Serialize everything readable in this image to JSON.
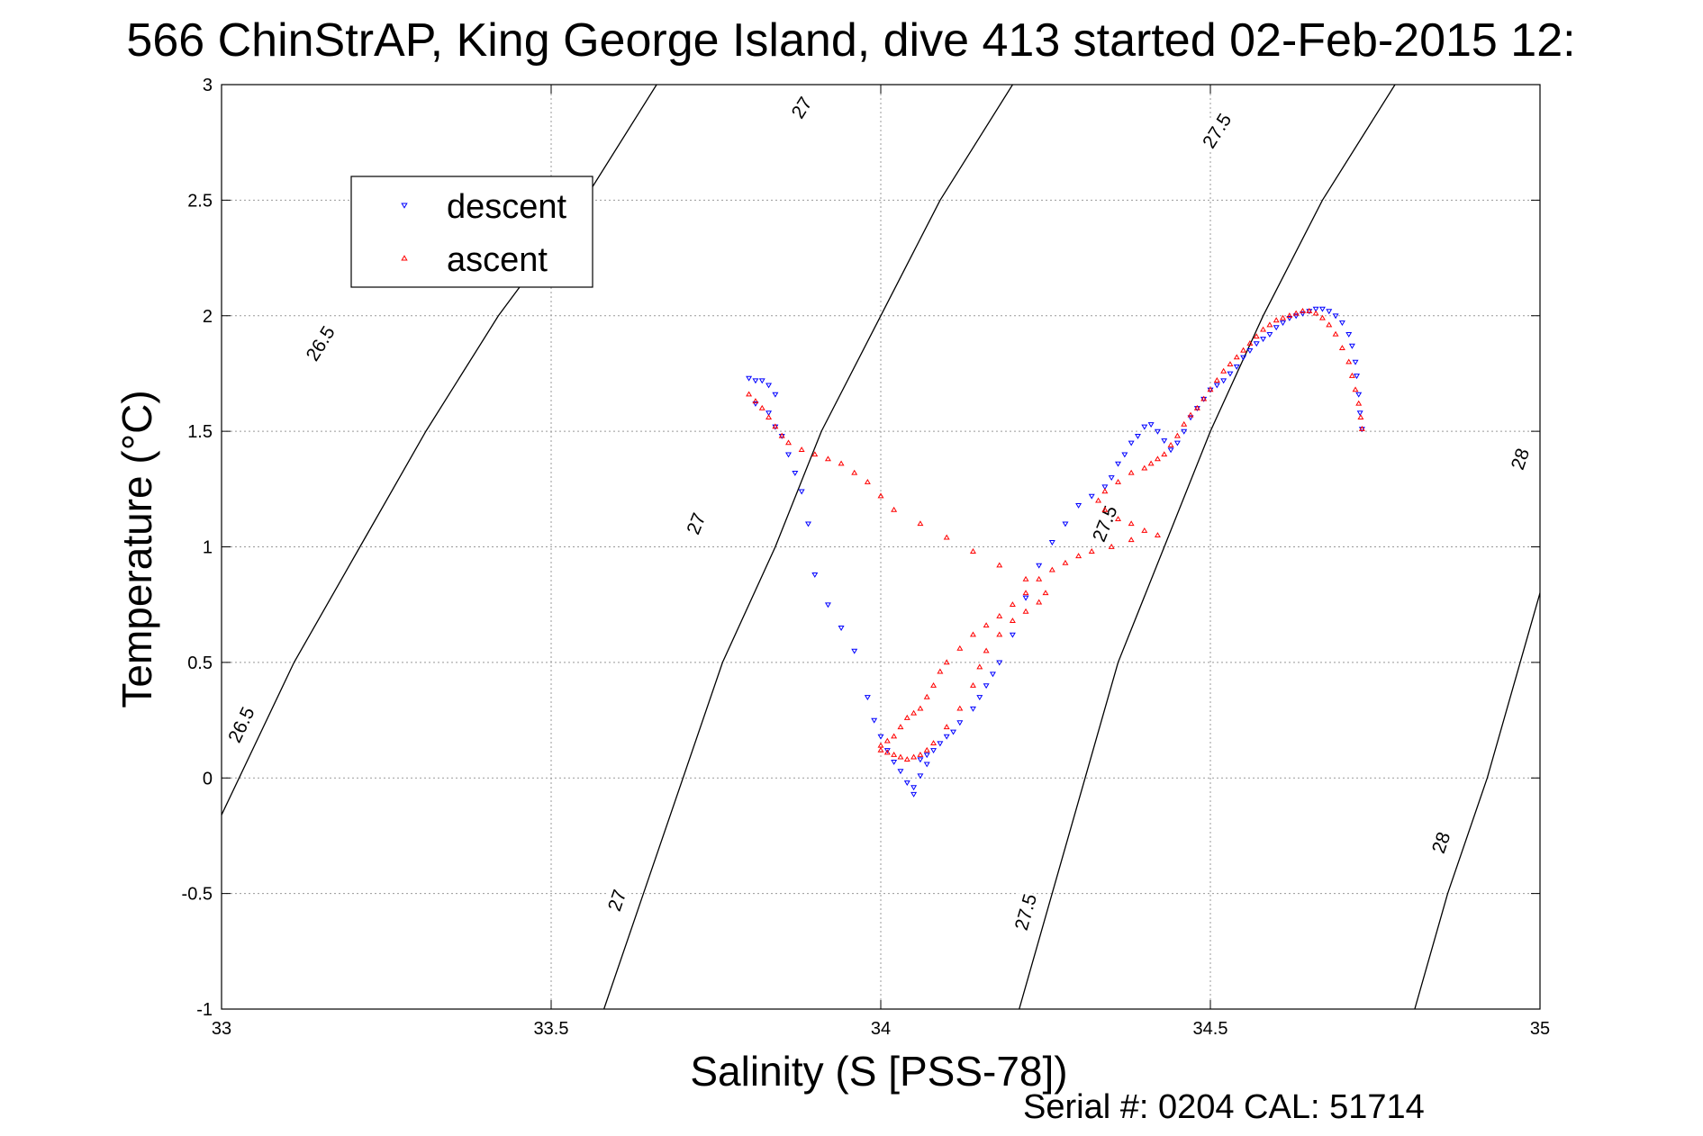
{
  "chart_data": {
    "type": "scatter",
    "title": "566 ChinStrAP, King George Island, dive 413 started 02-Feb-2015 12:",
    "xlabel": "Salinity (S [PSS-78])",
    "ylabel": "Temperature (°C)",
    "xlim": [
      33,
      35
    ],
    "ylim": [
      -1,
      3
    ],
    "xticks": [
      33,
      33.5,
      34,
      34.5,
      35
    ],
    "xtick_labels": [
      "33",
      "33.5",
      "34",
      "34.5",
      "35"
    ],
    "yticks": [
      -1,
      -0.5,
      0,
      0.5,
      1,
      1.5,
      2,
      2.5,
      3
    ],
    "ytick_labels": [
      "-1",
      "-0.5",
      "0",
      "0.5",
      "1",
      "1.5",
      "2",
      "2.5",
      "3"
    ],
    "grid": true,
    "legend_position": "upper-left",
    "footer": "Serial #: 0204  CAL: 51714",
    "contours": [
      {
        "level": "26.5",
        "points": [
          [
            33.0,
            -0.16
          ],
          [
            33.11,
            0.5
          ],
          [
            33.21,
            1.0
          ],
          [
            33.31,
            1.5
          ],
          [
            33.42,
            2.0
          ],
          [
            33.55,
            2.5
          ],
          [
            33.66,
            3.0
          ]
        ],
        "labels": [
          {
            "text": "26.5",
            "x": 33.03,
            "y": 0.23
          },
          {
            "text": "26.5",
            "x": 33.15,
            "y": 1.88
          }
        ]
      },
      {
        "level": "27",
        "points": [
          [
            33.58,
            -1.0
          ],
          [
            33.64,
            -0.5
          ],
          [
            33.7,
            0.0
          ],
          [
            33.76,
            0.5
          ],
          [
            33.84,
            1.0
          ],
          [
            33.91,
            1.5
          ],
          [
            34.0,
            2.0
          ],
          [
            34.09,
            2.5
          ],
          [
            34.2,
            3.0
          ]
        ],
        "labels": [
          {
            "text": "27",
            "x": 33.6,
            "y": -0.53
          },
          {
            "text": "27",
            "x": 33.72,
            "y": 1.1
          },
          {
            "text": "27",
            "x": 33.88,
            "y": 2.9
          }
        ]
      },
      {
        "level": "27.5",
        "points": [
          [
            34.21,
            -1.0
          ],
          [
            34.26,
            -0.5
          ],
          [
            34.31,
            0.0
          ],
          [
            34.36,
            0.5
          ],
          [
            34.43,
            1.0
          ],
          [
            34.5,
            1.5
          ],
          [
            34.58,
            2.0
          ],
          [
            34.67,
            2.5
          ],
          [
            34.78,
            3.0
          ]
        ],
        "labels": [
          {
            "text": "27.5",
            "x": 34.22,
            "y": -0.58
          },
          {
            "text": "27.5",
            "x": 34.34,
            "y": 1.1
          },
          {
            "text": "27.5",
            "x": 34.51,
            "y": 2.8
          }
        ]
      },
      {
        "level": "28",
        "points": [
          [
            34.81,
            -1.0
          ],
          [
            34.86,
            -0.5
          ],
          [
            34.92,
            0.0
          ],
          [
            34.97,
            0.5
          ],
          [
            35.02,
            1.0
          ],
          [
            35.08,
            1.5
          ],
          [
            35.15,
            2.0
          ]
        ],
        "labels": [
          {
            "text": "28",
            "x": 34.85,
            "y": -0.28
          },
          {
            "text": "28",
            "x": 34.97,
            "y": 1.38
          }
        ]
      }
    ],
    "series": [
      {
        "name": "descent",
        "color": "#0000ff",
        "marker": "triangle-down",
        "x": [
          33.8,
          33.81,
          33.82,
          33.83,
          33.84,
          33.81,
          33.83,
          33.84,
          33.85,
          33.86,
          33.87,
          33.88,
          33.89,
          33.9,
          33.92,
          33.94,
          33.96,
          33.98,
          33.99,
          34.0,
          34.01,
          34.02,
          34.03,
          34.04,
          34.05,
          34.05,
          34.06,
          34.06,
          34.07,
          34.07,
          34.08,
          34.09,
          34.1,
          34.11,
          34.12,
          34.14,
          34.15,
          34.16,
          34.17,
          34.18,
          34.2,
          34.22,
          34.24,
          34.26,
          34.28,
          34.3,
          34.32,
          34.34,
          34.35,
          34.36,
          34.37,
          34.38,
          34.39,
          34.4,
          34.41,
          34.42,
          34.43,
          34.44,
          34.45,
          34.46,
          34.47,
          34.48,
          34.49,
          34.5,
          34.51,
          34.52,
          34.53,
          34.54,
          34.55,
          34.56,
          34.57,
          34.58,
          34.59,
          34.6,
          34.61,
          34.62,
          34.63,
          34.64,
          34.65,
          34.66,
          34.67,
          34.68,
          34.69,
          34.7,
          34.71,
          34.715,
          34.72,
          34.722,
          34.725,
          34.727,
          34.73
        ],
        "y": [
          1.73,
          1.72,
          1.72,
          1.7,
          1.66,
          1.62,
          1.58,
          1.52,
          1.48,
          1.4,
          1.32,
          1.24,
          1.1,
          0.88,
          0.75,
          0.65,
          0.55,
          0.35,
          0.25,
          0.18,
          0.12,
          0.07,
          0.03,
          -0.02,
          -0.04,
          -0.07,
          0.01,
          0.08,
          0.1,
          0.06,
          0.12,
          0.15,
          0.18,
          0.2,
          0.24,
          0.3,
          0.35,
          0.4,
          0.45,
          0.5,
          0.62,
          0.78,
          0.92,
          1.02,
          1.1,
          1.18,
          1.22,
          1.26,
          1.3,
          1.36,
          1.4,
          1.45,
          1.48,
          1.52,
          1.53,
          1.5,
          1.46,
          1.42,
          1.45,
          1.5,
          1.56,
          1.6,
          1.64,
          1.68,
          1.7,
          1.72,
          1.75,
          1.78,
          1.82,
          1.85,
          1.88,
          1.9,
          1.92,
          1.95,
          1.97,
          1.99,
          2.0,
          2.01,
          2.02,
          2.03,
          2.03,
          2.02,
          2.0,
          1.97,
          1.92,
          1.87,
          1.8,
          1.74,
          1.66,
          1.58,
          1.51
        ]
      },
      {
        "name": "ascent",
        "color": "#ff0000",
        "marker": "triangle-up",
        "x": [
          34.73,
          34.728,
          34.725,
          34.72,
          34.715,
          34.71,
          34.7,
          34.69,
          34.68,
          34.67,
          34.66,
          34.65,
          34.64,
          34.63,
          34.62,
          34.61,
          34.6,
          34.59,
          34.58,
          34.57,
          34.56,
          34.55,
          34.54,
          34.53,
          34.52,
          34.51,
          34.5,
          34.49,
          34.48,
          34.47,
          34.46,
          34.45,
          34.44,
          34.43,
          34.42,
          34.41,
          34.4,
          34.38,
          34.36,
          34.34,
          34.33,
          34.34,
          34.36,
          34.38,
          34.4,
          34.42,
          34.38,
          34.35,
          34.32,
          34.3,
          34.28,
          34.26,
          34.24,
          34.22,
          34.2,
          34.18,
          34.16,
          34.14,
          34.12,
          34.1,
          34.09,
          34.08,
          34.07,
          34.06,
          34.05,
          34.04,
          34.03,
          34.02,
          34.01,
          34.0,
          34.0,
          34.01,
          34.02,
          34.03,
          34.04,
          34.05,
          34.06,
          34.07,
          34.08,
          34.1,
          34.12,
          34.14,
          34.15,
          34.16,
          34.18,
          34.2,
          34.22,
          34.24,
          34.25,
          34.22,
          34.18,
          34.14,
          34.1,
          34.06,
          34.02,
          34.0,
          33.98,
          33.96,
          33.94,
          33.92,
          33.9,
          33.88,
          33.86,
          33.85,
          33.84,
          33.83,
          33.82,
          33.81,
          33.8
        ],
        "y": [
          1.51,
          1.56,
          1.62,
          1.68,
          1.74,
          1.8,
          1.86,
          1.92,
          1.96,
          1.99,
          2.01,
          2.02,
          2.02,
          2.01,
          2.0,
          1.99,
          1.98,
          1.96,
          1.94,
          1.91,
          1.88,
          1.85,
          1.82,
          1.79,
          1.76,
          1.72,
          1.68,
          1.64,
          1.6,
          1.57,
          1.53,
          1.48,
          1.44,
          1.4,
          1.38,
          1.36,
          1.34,
          1.32,
          1.28,
          1.24,
          1.2,
          1.16,
          1.12,
          1.1,
          1.07,
          1.05,
          1.03,
          1.0,
          0.98,
          0.96,
          0.93,
          0.9,
          0.86,
          0.8,
          0.75,
          0.7,
          0.66,
          0.62,
          0.56,
          0.5,
          0.46,
          0.4,
          0.35,
          0.3,
          0.28,
          0.26,
          0.22,
          0.18,
          0.16,
          0.14,
          0.12,
          0.11,
          0.1,
          0.09,
          0.08,
          0.09,
          0.1,
          0.12,
          0.15,
          0.22,
          0.3,
          0.4,
          0.48,
          0.55,
          0.62,
          0.68,
          0.72,
          0.76,
          0.8,
          0.86,
          0.92,
          0.98,
          1.04,
          1.1,
          1.16,
          1.22,
          1.28,
          1.32,
          1.36,
          1.38,
          1.4,
          1.42,
          1.45,
          1.48,
          1.52,
          1.56,
          1.6,
          1.63,
          1.66
        ]
      }
    ]
  }
}
